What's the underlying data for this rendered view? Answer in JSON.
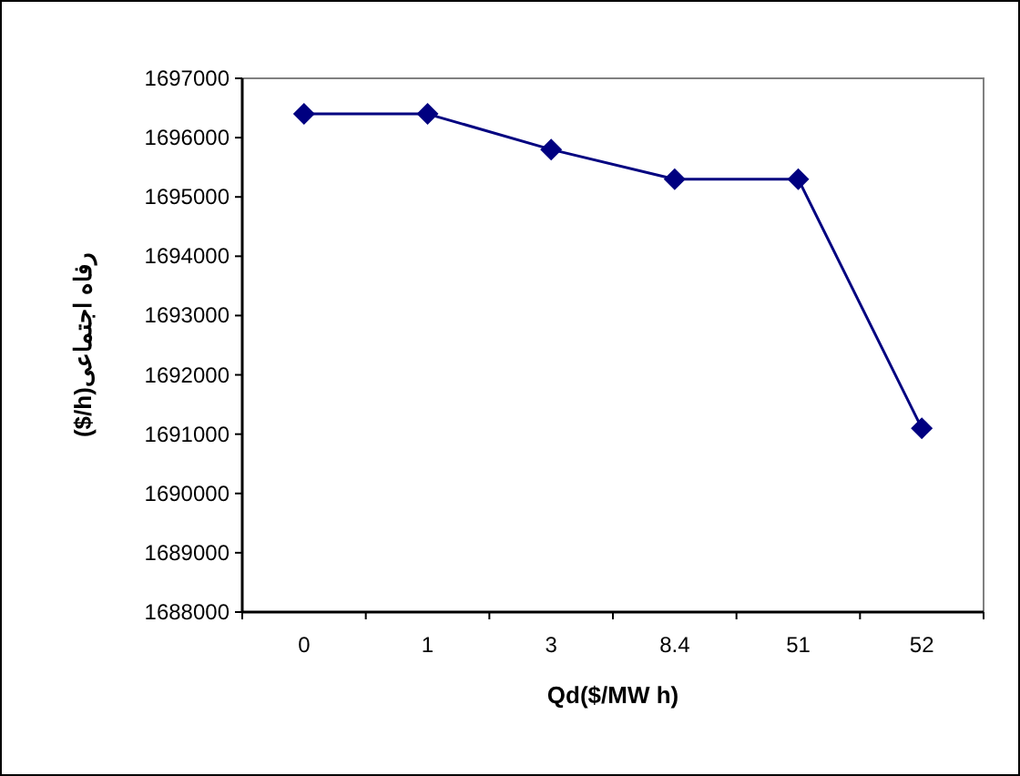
{
  "chart_data": {
    "type": "line",
    "xlabel": "Qd($/MW h)",
    "ylabel": "رفاه اجتماعی($/h)",
    "categories": [
      "0",
      "1",
      "3",
      "8.4",
      "51",
      "52"
    ],
    "series": [
      {
        "color": "#000080",
        "values": [
          1696400,
          1696400,
          1695800,
          1695300,
          1695300,
          1691100
        ]
      }
    ],
    "ylim": [
      1688000,
      1697000
    ],
    "yticks": [
      1688000,
      1689000,
      1690000,
      1691000,
      1692000,
      1693000,
      1694000,
      1695000,
      1696000,
      1697000
    ],
    "marker": "diamond",
    "line_style": "solid",
    "grid": false
  }
}
